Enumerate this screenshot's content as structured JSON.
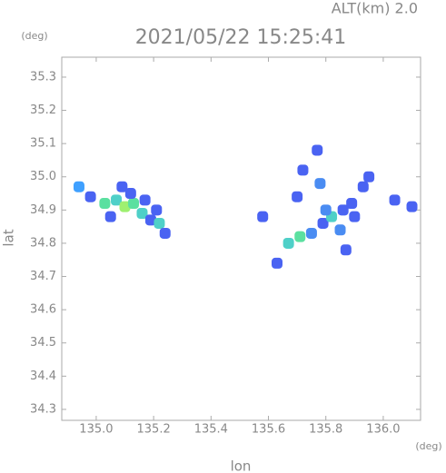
{
  "chart_data": {
    "type": "scatter",
    "header": "ALT(km) 2.0",
    "title": "2021/05/22 15:25:41",
    "x_label": "lon",
    "y_label": "lat",
    "x_unit": "(deg)",
    "y_unit": "(deg)",
    "xlim": [
      134.88,
      136.13
    ],
    "ylim": [
      34.267,
      35.36
    ],
    "xticks": [
      {
        "value": 135.0,
        "label": "135.0"
      },
      135.2,
      135.4,
      135.6,
      135.8,
      {
        "value": 136.0,
        "label": "136.0"
      }
    ],
    "yticks": [
      34.3,
      34.4,
      34.5,
      34.6,
      34.7,
      34.8,
      34.9,
      {
        "value": 35.0,
        "label": "35.0"
      },
      35.1,
      35.2,
      35.3
    ],
    "x": [
      134.94,
      134.98,
      135.03,
      135.07,
      135.1,
      135.13,
      135.16,
      135.19,
      135.22,
      135.24,
      135.05,
      135.12,
      135.09,
      135.17,
      135.21,
      135.58,
      135.67,
      135.71,
      135.75,
      135.79,
      135.82,
      135.86,
      135.89,
      135.93,
      135.95,
      135.85,
      135.87,
      135.7,
      135.72,
      135.77,
      135.78,
      136.04,
      136.1,
      135.63,
      135.9,
      135.8
    ],
    "y": [
      34.97,
      34.94,
      34.92,
      34.93,
      34.91,
      34.92,
      34.89,
      34.87,
      34.86,
      34.83,
      34.88,
      34.95,
      34.97,
      34.93,
      34.9,
      34.88,
      34.8,
      34.82,
      34.83,
      34.86,
      34.88,
      34.9,
      34.92,
      34.97,
      35.0,
      34.84,
      34.78,
      34.94,
      35.02,
      35.08,
      34.98,
      34.93,
      34.91,
      34.74,
      34.88,
      34.9
    ],
    "colors": [
      "#3fa0ff",
      "#4a63f2",
      "#5be0a0",
      "#4fd0c8",
      "#9ef070",
      "#5be0a0",
      "#4fd0c8",
      "#4a63f2",
      "#4fd0c8",
      "#4a63f2",
      "#4a63f2",
      "#4a63f2",
      "#4a63f2",
      "#4a63f2",
      "#4a63f2",
      "#4a63f2",
      "#4fd0c8",
      "#5be0a0",
      "#4a8cf2",
      "#4a63f2",
      "#4fd0c8",
      "#4a63f2",
      "#4a63f2",
      "#4a63f2",
      "#4a63f2",
      "#4a8cf2",
      "#4a63f2",
      "#4a63f2",
      "#4a63f2",
      "#4a63f2",
      "#4a8cf2",
      "#4a63f2",
      "#4a63f2",
      "#4a63f2",
      "#4a63f2",
      "#4a8cf2"
    ]
  }
}
